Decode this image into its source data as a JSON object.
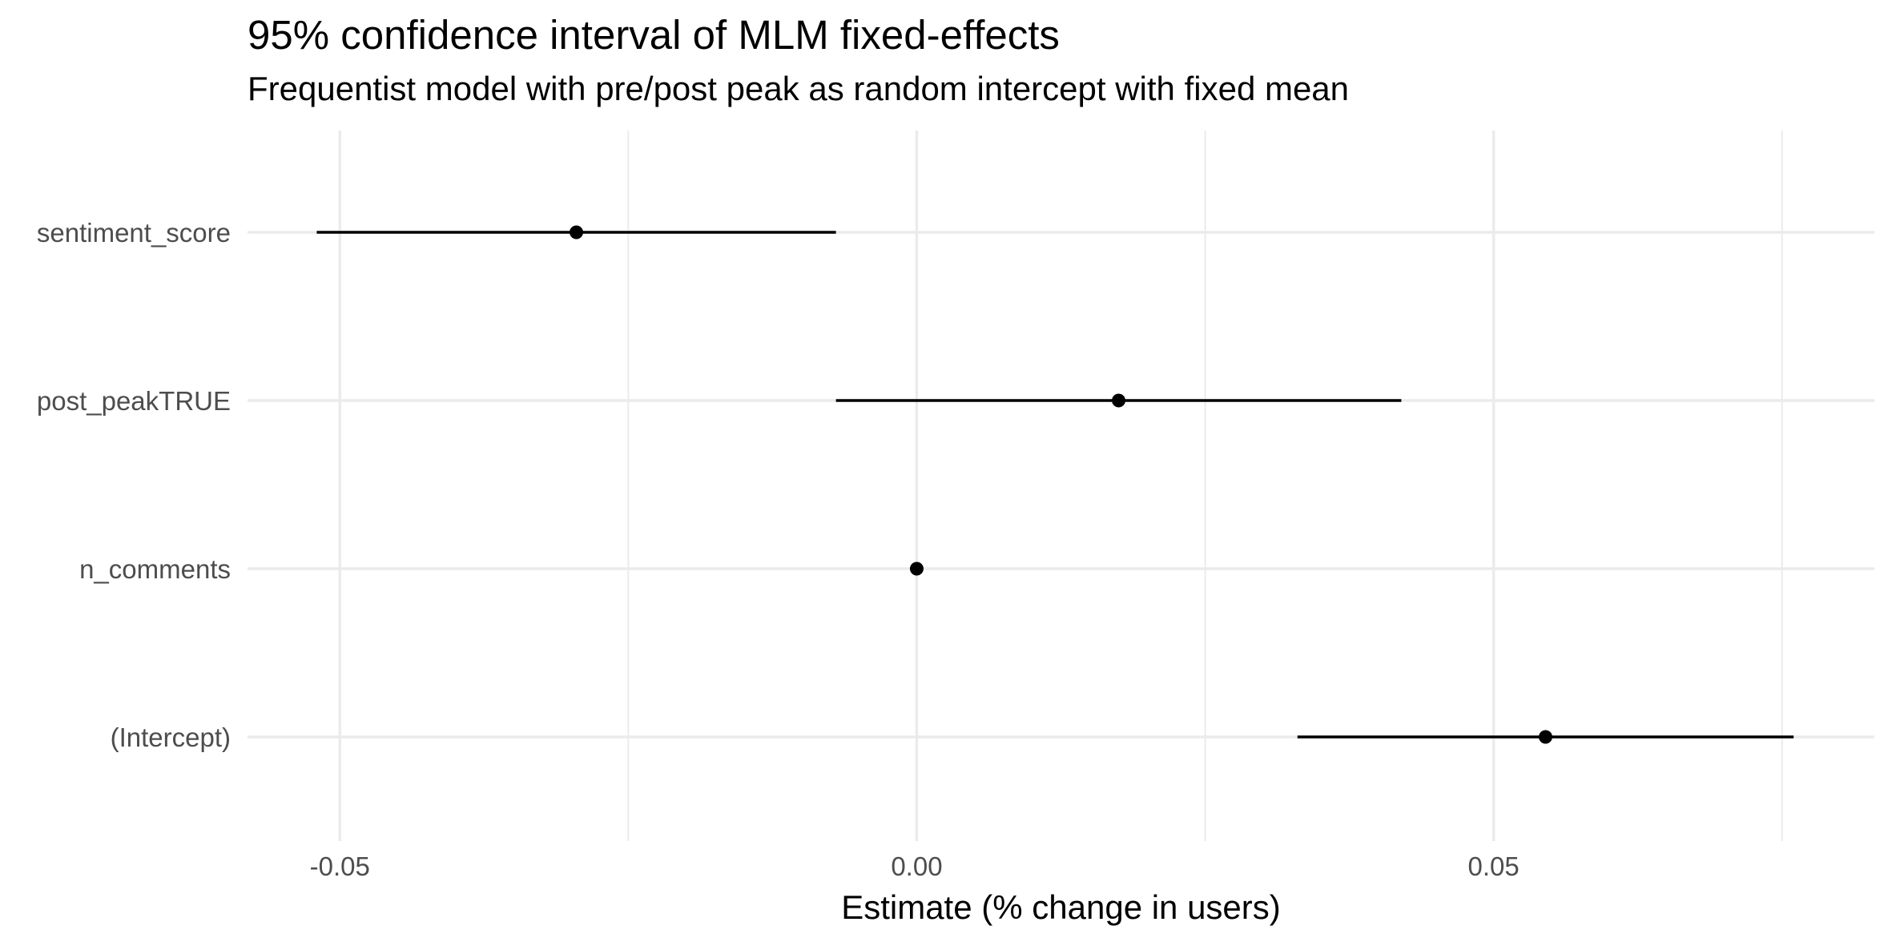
{
  "chart_data": {
    "type": "scatter",
    "subtype": "coefficient-interval-plot",
    "title": "95% confidence interval of MLM fixed-effects",
    "subtitle": "Frequentist model with pre/post peak as random intercept with fixed mean",
    "xlabel": "Estimate (% change in users)",
    "ylabel": "",
    "xlim": [
      -0.058,
      0.083
    ],
    "x_ticks": [
      -0.05,
      0.0,
      0.05
    ],
    "x_tick_labels": [
      "-0.05",
      "0.00",
      "0.05"
    ],
    "categories": [
      "sentiment_score",
      "post_peakTRUE",
      "n_comments",
      "(Intercept)"
    ],
    "series": [
      {
        "estimate": [
          -0.0295,
          0.0175,
          0.0,
          0.0545
        ],
        "lower": [
          -0.052,
          -0.007,
          0.0,
          0.033
        ],
        "upper": [
          -0.007,
          0.042,
          0.0,
          0.076
        ]
      }
    ],
    "grid": true,
    "legend": "none",
    "point_color": "#000000",
    "line_color": "#000000",
    "grid_color": "#ebebeb",
    "tick_label_color": "#4d4d4d"
  }
}
